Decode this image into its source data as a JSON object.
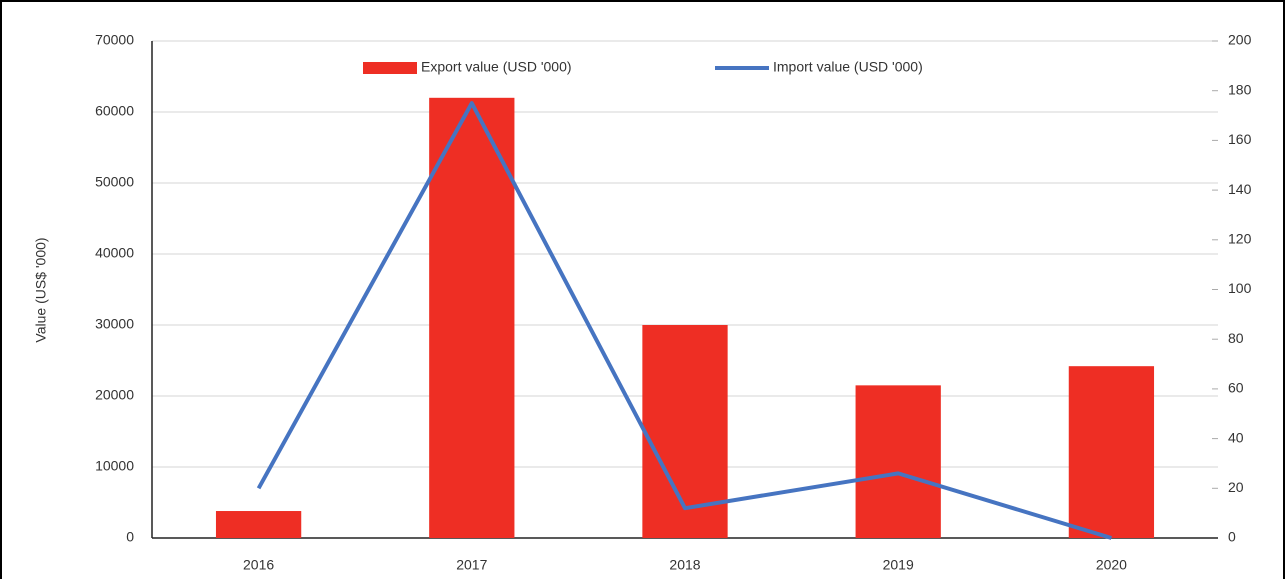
{
  "chart_data": {
    "type": "bar",
    "categories": [
      "2016",
      "2017",
      "2018",
      "2019",
      "2020"
    ],
    "y_label": "Value (US$ '000)",
    "series": [
      {
        "name": "Export value (USD '000)",
        "type": "bar",
        "color": "#ee2e24",
        "values": [
          3800,
          62000,
          30000,
          21500,
          24200
        ]
      },
      {
        "name": "Import value (USD '000)",
        "type": "line",
        "axis": "y2",
        "color": "#4674c1",
        "values": [
          20,
          175,
          12,
          26,
          0
        ]
      }
    ],
    "ylim": [
      0,
      70000
    ],
    "yticks": [
      0,
      10000,
      20000,
      30000,
      40000,
      50000,
      60000,
      70000
    ],
    "y2lim": [
      0,
      200
    ],
    "y2ticks": [
      0,
      20,
      40,
      60,
      80,
      100,
      120,
      140,
      160,
      180,
      200
    ],
    "grid": true,
    "legend": "top"
  }
}
